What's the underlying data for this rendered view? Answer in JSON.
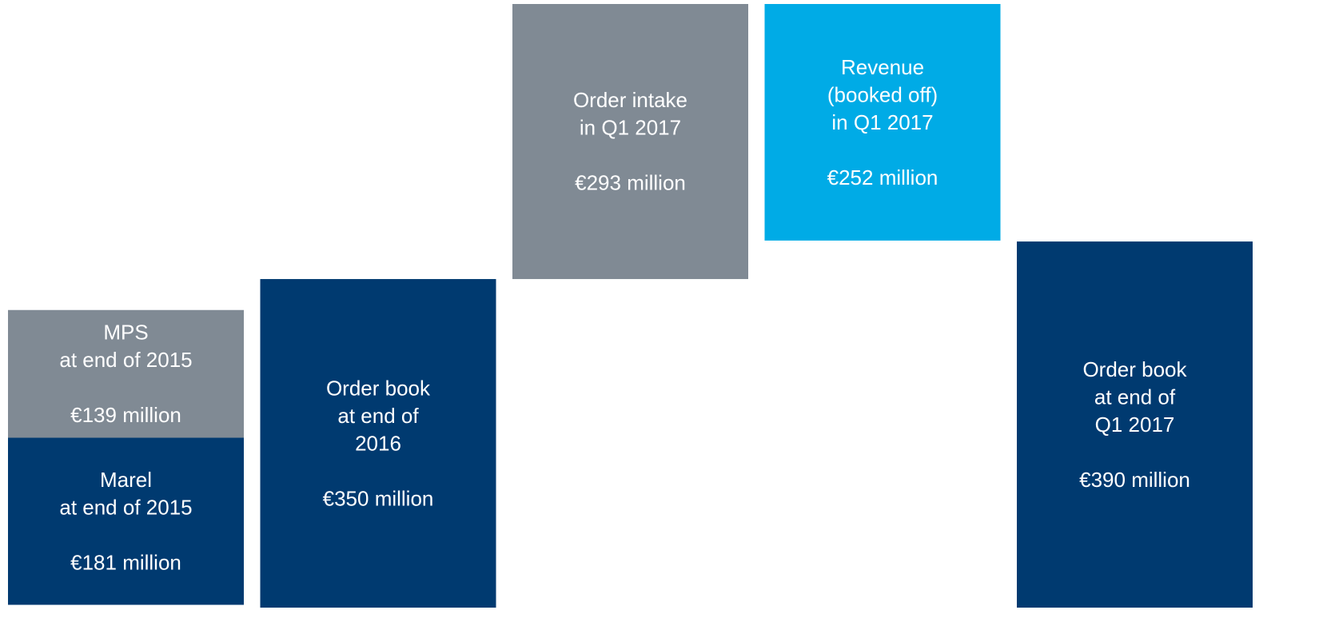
{
  "chart_data": {
    "type": "waterfall",
    "bars": [
      {
        "label": [
          "Marel",
          "at end of 2015"
        ],
        "value": 181,
        "value_label": "€181 million",
        "measure": "absolute",
        "color": "#003a70"
      },
      {
        "label": [
          "MPS",
          "at end of 2015"
        ],
        "value": 139,
        "value_label": "€139 million",
        "measure": "stack",
        "color": "#808a94"
      },
      {
        "label": [
          "Order book",
          "at end of",
          "2016"
        ],
        "value": 350,
        "value_label": "€350 million",
        "measure": "absolute",
        "color": "#003a70"
      },
      {
        "label": [
          "Order intake",
          "in Q1 2017"
        ],
        "value": 293,
        "value_label": "€293 million",
        "measure": "increase",
        "color": "#808a94"
      },
      {
        "label": [
          "Revenue",
          "(booked off)",
          "in Q1 2017"
        ],
        "value": 252,
        "value_label": "€252 million",
        "measure": "decrease",
        "color": "#00abe6"
      },
      {
        "label": [
          "Order book",
          "at end of",
          "Q1 2017"
        ],
        "value": 390,
        "value_label": "€390 million",
        "measure": "absolute",
        "color": "#003a70"
      }
    ]
  }
}
